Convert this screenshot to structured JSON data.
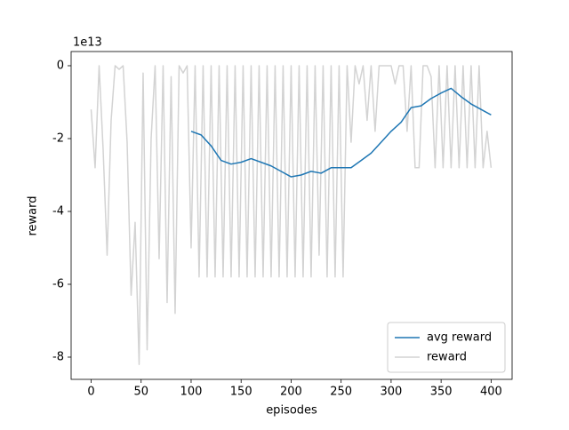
{
  "chart_data": {
    "type": "line",
    "xlabel": "episodes",
    "ylabel": "reward",
    "y_offset_text": "1e13",
    "xlim": [
      -20,
      421
    ],
    "ylim": [
      -8.61,
      0.39
    ],
    "xticks": [
      0,
      50,
      100,
      150,
      200,
      250,
      300,
      350,
      400
    ],
    "yticks": [
      -8,
      -6,
      -4,
      -2,
      0
    ],
    "grid": false,
    "legend": "lower right",
    "series": [
      {
        "name": "avg reward",
        "color": "#1f77b4",
        "x": [
          100,
          110,
          120,
          130,
          140,
          150,
          160,
          170,
          180,
          190,
          200,
          210,
          220,
          230,
          240,
          250,
          260,
          270,
          280,
          290,
          300,
          310,
          320,
          330,
          340,
          350,
          360,
          370,
          380,
          390,
          400
        ],
        "values": [
          -1.8,
          -1.9,
          -2.2,
          -2.6,
          -2.7,
          -2.65,
          -2.55,
          -2.65,
          -2.75,
          -2.9,
          -3.05,
          -3.0,
          -2.9,
          -2.95,
          -2.8,
          -2.8,
          -2.8,
          -2.6,
          -2.4,
          -2.1,
          -1.8,
          -1.55,
          -1.15,
          -1.1,
          -0.9,
          -0.75,
          -0.62,
          -0.85,
          -1.05,
          -1.2,
          -1.35
        ]
      },
      {
        "name": "reward",
        "color": "#d3d3d3",
        "x": [
          0,
          4,
          8,
          12,
          16,
          20,
          24,
          28,
          32,
          36,
          40,
          44,
          48,
          52,
          56,
          60,
          64,
          68,
          72,
          76,
          80,
          84,
          88,
          92,
          96,
          100,
          104,
          108,
          112,
          116,
          120,
          124,
          128,
          132,
          136,
          140,
          144,
          148,
          152,
          156,
          160,
          164,
          168,
          172,
          176,
          180,
          184,
          188,
          192,
          196,
          200,
          204,
          208,
          212,
          216,
          220,
          224,
          228,
          232,
          236,
          240,
          244,
          248,
          252,
          256,
          260,
          264,
          268,
          272,
          276,
          280,
          284,
          288,
          292,
          296,
          300,
          304,
          308,
          312,
          316,
          320,
          324,
          328,
          332,
          336,
          340,
          344,
          348,
          352,
          356,
          360,
          364,
          368,
          372,
          376,
          380,
          384,
          388,
          392,
          396,
          400
        ],
        "values": [
          -1.2,
          -2.8,
          0,
          -2.3,
          -5.2,
          -1.5,
          0,
          -0.1,
          0,
          -2.1,
          -6.3,
          -4.3,
          -8.2,
          -0.2,
          -7.8,
          -2.0,
          0,
          -5.3,
          0,
          -6.5,
          -0.3,
          -6.8,
          0,
          -0.2,
          0,
          -5.0,
          0,
          -5.8,
          0,
          -5.8,
          0,
          -5.8,
          0,
          -5.8,
          0,
          -5.8,
          0,
          -5.8,
          0,
          -5.8,
          0,
          -5.8,
          0,
          -5.8,
          0,
          -5.8,
          0,
          -5.8,
          0,
          -5.8,
          0,
          -5.8,
          0,
          -5.8,
          0,
          -5.8,
          0,
          -5.2,
          0,
          -5.8,
          0,
          -5.8,
          0,
          -5.8,
          0,
          -2.1,
          0,
          -0.5,
          0,
          -1.5,
          0,
          -1.8,
          0,
          0,
          0,
          0,
          -0.5,
          0,
          0,
          -1.8,
          0,
          -2.8,
          -2.8,
          0,
          0,
          -0.3,
          -2.8,
          0,
          -2.8,
          0,
          -2.8,
          0,
          -2.8,
          0,
          -2.8,
          0,
          -2.8,
          0,
          -2.8,
          -1.8,
          -2.8
        ]
      }
    ]
  }
}
